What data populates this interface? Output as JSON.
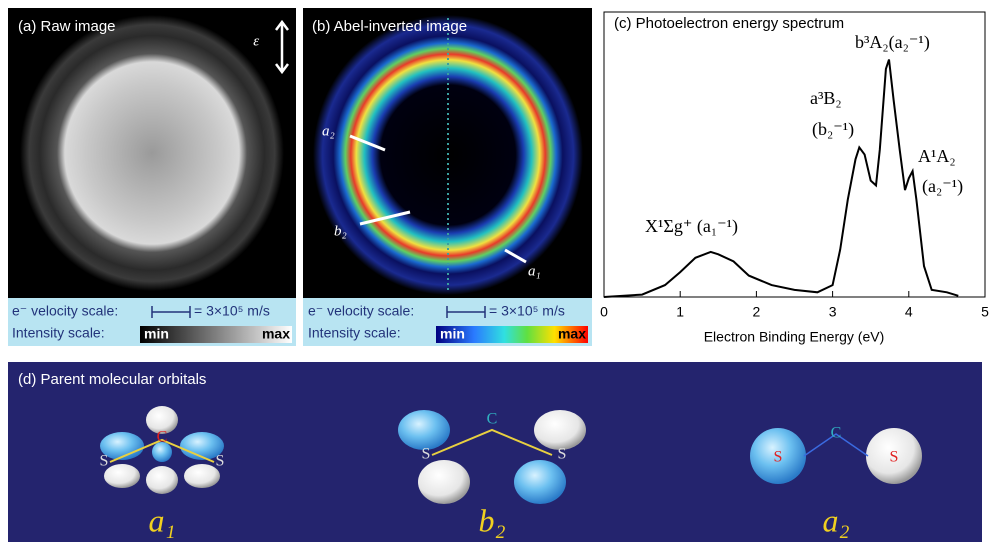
{
  "panel_a": {
    "title": "(a) Raw image",
    "polarization": "ε⃗",
    "velocity_label": "e⁻ velocity scale:",
    "velocity_value": "= 3×10⁵ m/s",
    "intensity_label": "Intensity scale:",
    "min": "min",
    "max": "max"
  },
  "panel_b": {
    "title": "(b) Abel-inverted image",
    "labels": [
      "a₂",
      "b₂",
      "a₁"
    ],
    "velocity_label": "e⁻ velocity scale:",
    "velocity_value": "= 3×10⁵ m/s",
    "intensity_label": "Intensity scale:",
    "min": "min",
    "max": "max"
  },
  "chart_data": {
    "type": "line",
    "title": "(c) Photoelectron energy spectrum",
    "x_label": "Electron Binding Energy (eV)",
    "x": [
      0,
      0.5,
      0.8,
      1.0,
      1.2,
      1.4,
      1.5,
      1.7,
      1.9,
      2.2,
      2.5,
      2.8,
      3.0,
      3.1,
      3.2,
      3.3,
      3.35,
      3.42,
      3.5,
      3.57,
      3.62,
      3.7,
      3.74,
      3.8,
      3.88,
      3.95,
      4.0,
      4.05,
      4.1,
      4.2,
      4.3,
      4.5,
      4.65
    ],
    "values": [
      0,
      0.01,
      0.05,
      0.105,
      0.165,
      0.19,
      0.18,
      0.15,
      0.09,
      0.05,
      0.03,
      0.02,
      0.05,
      0.2,
      0.41,
      0.58,
      0.63,
      0.6,
      0.49,
      0.47,
      0.62,
      0.96,
      1.0,
      0.83,
      0.62,
      0.45,
      0.5,
      0.53,
      0.41,
      0.13,
      0.03,
      0.02,
      0.005
    ],
    "color": "#000000",
    "xlim": [
      0,
      5
    ],
    "xticks": [
      0,
      1,
      2,
      3,
      4,
      5
    ],
    "ylim": [
      0,
      1.2
    ],
    "annotations": [
      "X¹Σg⁺ (a₁⁻¹)",
      "a³B₂",
      "(b₂⁻¹)",
      "b³A₂(a₂⁻¹)",
      "A¹A₂",
      "(a₂⁻¹)"
    ]
  },
  "panel_d": {
    "title": "(d) Parent molecular orbitals",
    "orbitals": [
      {
        "label": "a₁",
        "atoms": [
          "S",
          "C",
          "S"
        ]
      },
      {
        "label": "b₂",
        "atoms": [
          "S",
          "C",
          "S"
        ]
      },
      {
        "label": "a₂",
        "atoms": [
          "S",
          "C",
          "S"
        ]
      }
    ]
  }
}
